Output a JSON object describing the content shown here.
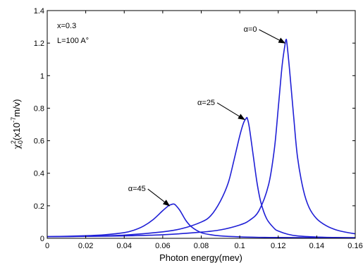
{
  "chart_data": {
    "type": "line",
    "title": "",
    "xlabel": "Photon energy(mev)",
    "ylabel": {
      "symbol": "χ",
      "sup": "2",
      "sub": "0",
      "pre": "(x10",
      "exp": "-7",
      "post": "m/v)"
    },
    "xlim": [
      0,
      0.16
    ],
    "ylim": [
      0,
      1.4
    ],
    "xticks": [
      0,
      0.02,
      0.04,
      0.06,
      0.08,
      0.1,
      0.12,
      0.14,
      0.16
    ],
    "xtick_labels": [
      "0",
      "0.02",
      "0.04",
      "0.06",
      "0.08",
      "0.1",
      "0.12",
      "0.14",
      "0.16"
    ],
    "yticks": [
      0,
      0.2,
      0.4,
      0.6,
      0.8,
      1.0,
      1.2,
      1.4
    ],
    "ytick_labels": [
      "0",
      "0.2",
      "0.4",
      "0.6",
      "0.8",
      "1",
      "1.2",
      "1.4"
    ],
    "grid": false,
    "line_color": "#1f1fd6",
    "parameters": [
      "x=0.3",
      "L=100 A°"
    ],
    "series": [
      {
        "name": "α=0",
        "x": [
          0,
          0.02,
          0.04,
          0.06,
          0.08,
          0.09,
          0.1,
          0.105,
          0.11,
          0.115,
          0.118,
          0.12,
          0.122,
          0.1235,
          0.124,
          0.1245,
          0.126,
          0.128,
          0.13,
          0.133,
          0.136,
          0.14,
          0.145,
          0.15,
          0.155,
          0.16
        ],
        "y": [
          0.01,
          0.012,
          0.015,
          0.022,
          0.038,
          0.052,
          0.082,
          0.11,
          0.17,
          0.33,
          0.55,
          0.8,
          1.06,
          1.19,
          1.22,
          1.2,
          1.02,
          0.75,
          0.5,
          0.3,
          0.19,
          0.12,
          0.077,
          0.052,
          0.038,
          0.028
        ]
      },
      {
        "name": "α=25",
        "x": [
          0,
          0.02,
          0.04,
          0.06,
          0.07,
          0.08,
          0.085,
          0.09,
          0.094,
          0.097,
          0.1,
          0.102,
          0.1035,
          0.104,
          0.105,
          0.107,
          0.109,
          0.111,
          0.114,
          0.118,
          0.12,
          0.125,
          0.13,
          0.14,
          0.15,
          0.16
        ],
        "y": [
          0.01,
          0.013,
          0.02,
          0.04,
          0.06,
          0.1,
          0.14,
          0.23,
          0.34,
          0.48,
          0.63,
          0.71,
          0.74,
          0.735,
          0.68,
          0.51,
          0.34,
          0.22,
          0.12,
          0.06,
          0.045,
          0.025,
          0.015,
          0.008,
          0.005,
          0.004
        ]
      },
      {
        "name": "α=45",
        "x": [
          0,
          0.02,
          0.03,
          0.04,
          0.045,
          0.05,
          0.055,
          0.06,
          0.063,
          0.065,
          0.066,
          0.067,
          0.069,
          0.072,
          0.075,
          0.08,
          0.085,
          0.09,
          0.1,
          0.11,
          0.12,
          0.14,
          0.16
        ],
        "y": [
          0.01,
          0.016,
          0.022,
          0.035,
          0.05,
          0.075,
          0.115,
          0.17,
          0.2,
          0.21,
          0.21,
          0.2,
          0.17,
          0.11,
          0.07,
          0.035,
          0.022,
          0.015,
          0.009,
          0.006,
          0.005,
          0.004,
          0.003
        ]
      }
    ],
    "annotations": [
      {
        "text": "α=0",
        "series": "α=0",
        "point": [
          0.1235,
          1.2
        ],
        "label_at": [
          0.102,
          1.27
        ]
      },
      {
        "text": "α=25",
        "series": "α=25",
        "point": [
          0.1025,
          0.73
        ],
        "label_at": [
          0.078,
          0.82
        ]
      },
      {
        "text": "α=45",
        "series": "α=45",
        "point": [
          0.0635,
          0.2
        ],
        "label_at": [
          0.042,
          0.29
        ]
      }
    ]
  }
}
